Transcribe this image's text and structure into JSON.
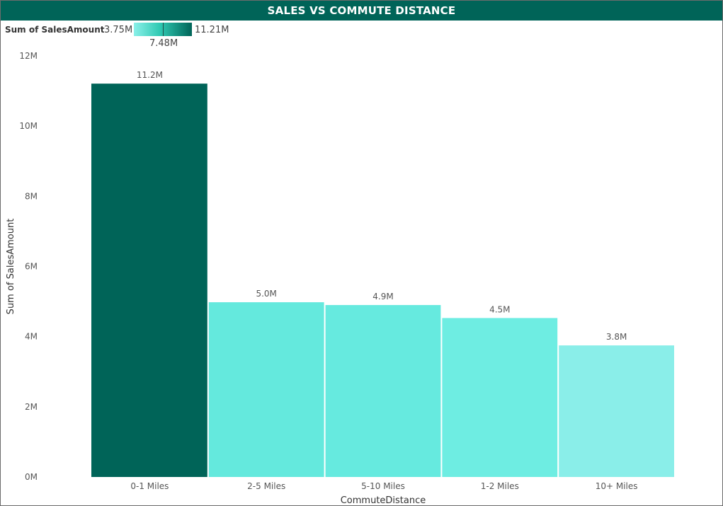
{
  "title": "SALES VS COMMUTE DISTANCE",
  "legend": {
    "title": "Sum of SalesAmount",
    "min_label": "3.75M",
    "mid_label": "7.48M",
    "max_label": "11.21M",
    "min_color": "#8af0e9",
    "max_color": "#006458"
  },
  "chart_data": {
    "type": "bar",
    "xlabel": "CommuteDistance",
    "ylabel": "Sum of SalesAmount",
    "ylim": [
      0,
      12000000
    ],
    "yticks": [
      0,
      2000000,
      4000000,
      6000000,
      8000000,
      10000000,
      12000000
    ],
    "ytick_labels": [
      "0M",
      "2M",
      "4M",
      "6M",
      "8M",
      "10M",
      "12M"
    ],
    "categories": [
      "0-1 Miles",
      "2-5 Miles",
      "5-10 Miles",
      "1-2 Miles",
      "10+ Miles"
    ],
    "values": [
      11210000,
      4980000,
      4900000,
      4530000,
      3750000
    ],
    "data_labels": [
      "11.2M",
      "5.0M",
      "4.9M",
      "4.5M",
      "3.8M"
    ],
    "colors": [
      "#006458",
      "#64e9dd",
      "#66eadf",
      "#6eede2",
      "#8aeee9"
    ],
    "grid": false,
    "legend_position": "top-left"
  }
}
